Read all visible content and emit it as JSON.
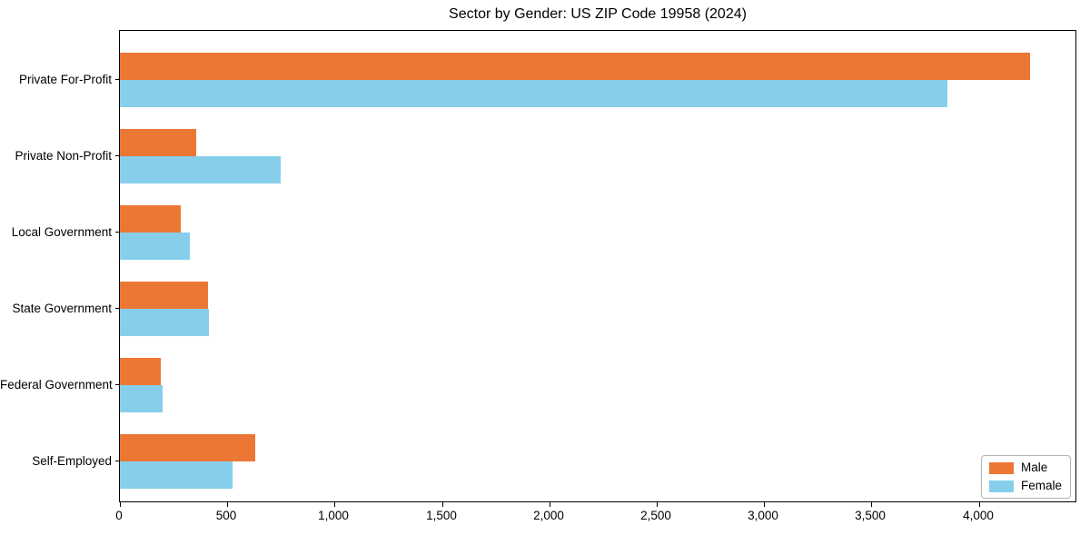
{
  "chart_data": {
    "type": "bar",
    "orientation": "horizontal",
    "title": "Sector by Gender: US ZIP Code 19958 (2024)",
    "categories": [
      "Private For-Profit",
      "Private Non-Profit",
      "Local Government",
      "State Government",
      "Federal Government",
      "Self-Employed"
    ],
    "series": [
      {
        "name": "Male",
        "color": "#EC7734",
        "values": [
          4240,
          355,
          285,
          410,
          190,
          630
        ]
      },
      {
        "name": "Female",
        "color": "#87CEEB",
        "values": [
          3855,
          750,
          325,
          415,
          200,
          525
        ]
      }
    ],
    "xlim": [
      0,
      4450
    ],
    "xticks": [
      0,
      500,
      1000,
      1500,
      2000,
      2500,
      3000,
      3500,
      4000
    ],
    "xtick_labels": [
      "0",
      "500",
      "1,000",
      "1,500",
      "2,000",
      "2,500",
      "3,000",
      "3,500",
      "4,000"
    ],
    "xlabel": "",
    "ylabel": "",
    "grid": false,
    "legend": {
      "position": "lower right",
      "entries": [
        "Male",
        "Female"
      ]
    },
    "colors": {
      "spine": "#000000",
      "background": "#ffffff"
    }
  }
}
